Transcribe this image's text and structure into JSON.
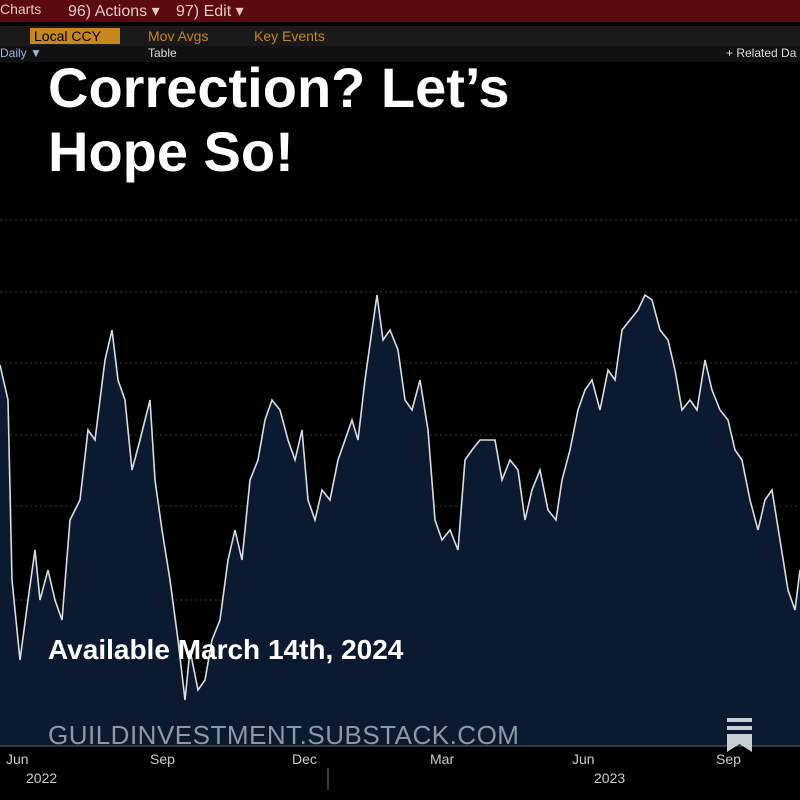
{
  "toolbar": {
    "row1": [
      "Charts",
      "96) Actions ▾",
      "97) Edit ▾"
    ],
    "row2": [
      "Local CCY",
      "Mov Avgs",
      "Key Events"
    ],
    "row3": [
      "Daily ▼",
      "Table",
      "+ Related Da"
    ]
  },
  "headline": "Correction? Let’s Hope So!",
  "subtitle": "Available March 14th, 2024",
  "website": "GUILDINVESTMENT.SUBSTACK.COM",
  "axis": {
    "months": [
      "Jun",
      "Sep",
      "Dec",
      "Mar",
      "Jun",
      "Sep"
    ],
    "years": [
      "2022",
      "2023"
    ]
  }
}
